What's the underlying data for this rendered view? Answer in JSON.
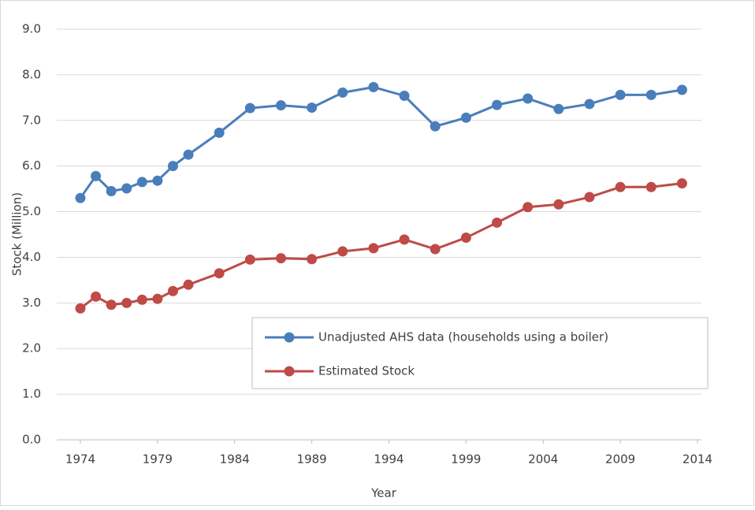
{
  "chart_data": {
    "type": "line",
    "x_label": "Year",
    "y_label": "Stock (Million)",
    "x": [
      1974,
      1975,
      1976,
      1977,
      1978,
      1979,
      1980,
      1981,
      1983,
      1985,
      1987,
      1989,
      1991,
      1993,
      1995,
      1997,
      1999,
      2001,
      2003,
      2005,
      2007,
      2009,
      2011,
      2013
    ],
    "series": [
      {
        "name": "Unadjusted AHS data (households using a boiler)",
        "color": "#4a7ebb",
        "values": [
          5.3,
          5.78,
          5.45,
          5.51,
          5.65,
          5.68,
          6.0,
          6.25,
          6.73,
          7.27,
          7.33,
          7.28,
          7.61,
          7.73,
          7.54,
          6.87,
          7.06,
          7.34,
          7.48,
          7.25,
          7.36,
          7.56,
          7.56,
          7.67
        ]
      },
      {
        "name": "Estimated Stock",
        "color": "#be4b48",
        "values": [
          2.88,
          3.14,
          2.96,
          3.0,
          3.07,
          3.09,
          3.26,
          3.4,
          3.65,
          3.95,
          3.98,
          3.96,
          4.13,
          4.2,
          4.39,
          4.18,
          4.43,
          4.76,
          5.1,
          5.16,
          5.32,
          5.54,
          5.54,
          5.62
        ]
      }
    ],
    "xlim": [
      1974,
      2014
    ],
    "xticks": [
      1974,
      1979,
      1984,
      1989,
      1994,
      1999,
      2004,
      2009,
      2014
    ],
    "ylim": [
      0,
      9
    ],
    "yticks": [
      {
        "value": 0,
        "label": "0.0"
      },
      {
        "value": 1,
        "label": "1.0"
      },
      {
        "value": 2,
        "label": "2.0"
      },
      {
        "value": 3,
        "label": "3.0"
      },
      {
        "value": 4,
        "label": "4.0"
      },
      {
        "value": 5,
        "label": "5.0"
      },
      {
        "value": 6,
        "label": "6.0"
      },
      {
        "value": 7,
        "label": "7.0"
      },
      {
        "value": 8,
        "label": "8.0"
      },
      {
        "value": 9,
        "label": "9.0"
      }
    ],
    "grid": true
  }
}
